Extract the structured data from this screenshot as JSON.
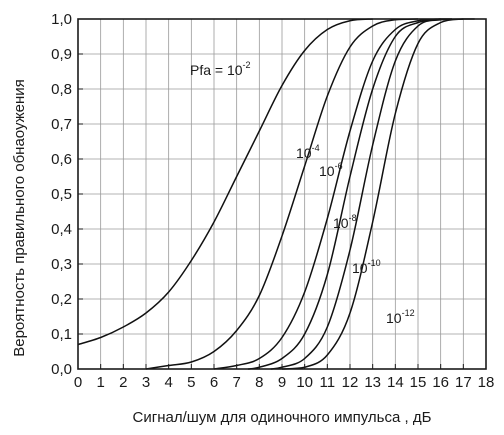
{
  "chart_data": {
    "type": "line",
    "title": "",
    "xlabel": "Сигнал/шум для одиночного импульса , дБ",
    "ylabel": "Вероятность правильного обнаоужения",
    "xlim": [
      0,
      18
    ],
    "ylim": [
      0,
      1
    ],
    "grid": true,
    "x_ticks": [
      0,
      1,
      2,
      3,
      4,
      5,
      6,
      7,
      8,
      9,
      10,
      11,
      12,
      13,
      14,
      15,
      16,
      17,
      18
    ],
    "y_ticks": [
      0.0,
      0.1,
      0.2,
      0.3,
      0.4,
      0.5,
      0.6,
      0.7,
      0.8,
      0.9,
      1.0
    ],
    "x_tick_labels": [
      "0",
      "1",
      "2",
      "3",
      "4",
      "5",
      "6",
      "7",
      "8",
      "9",
      "10",
      "11",
      "12",
      "13",
      "14",
      "15",
      "16",
      "17",
      "18"
    ],
    "y_tick_labels": [
      "0,0",
      "0,1",
      "0,2",
      "0,3",
      "0,4",
      "0,5",
      "0,6",
      "0,7",
      "0,8",
      "0,9",
      "1,0"
    ],
    "series": [
      {
        "label_base": "Pfa = 10",
        "label_exp": "-2",
        "x": [
          0,
          1,
          2,
          3,
          4,
          5,
          6,
          7,
          8,
          9,
          10,
          11,
          12,
          13
        ],
        "y": [
          0.07,
          0.09,
          0.12,
          0.16,
          0.22,
          0.31,
          0.42,
          0.55,
          0.68,
          0.81,
          0.91,
          0.97,
          0.995,
          1.0
        ]
      },
      {
        "label_base": "10",
        "label_exp": "-4",
        "x": [
          3,
          4,
          5,
          6,
          7,
          8,
          9,
          10,
          11,
          12,
          13,
          14,
          15
        ],
        "y": [
          0.0,
          0.01,
          0.02,
          0.05,
          0.11,
          0.21,
          0.38,
          0.58,
          0.78,
          0.92,
          0.98,
          0.998,
          1.0
        ]
      },
      {
        "label_base": "10",
        "label_exp": "-6",
        "x": [
          6,
          7,
          8,
          9,
          10,
          11,
          12,
          13,
          14,
          15,
          16
        ],
        "y": [
          0.0,
          0.01,
          0.03,
          0.09,
          0.22,
          0.43,
          0.68,
          0.88,
          0.97,
          0.995,
          1.0
        ]
      },
      {
        "label_base": "10",
        "label_exp": "-8",
        "x": [
          7.5,
          8,
          9,
          10,
          11,
          12,
          13,
          14,
          15,
          16,
          16.5
        ],
        "y": [
          0.0,
          0.005,
          0.03,
          0.1,
          0.27,
          0.55,
          0.8,
          0.95,
          0.99,
          1.0,
          1.0
        ]
      },
      {
        "label_base": "10",
        "label_exp": "-10",
        "x": [
          8.5,
          9,
          10,
          11,
          12,
          13,
          14,
          15,
          16,
          17
        ],
        "y": [
          0.0,
          0.005,
          0.03,
          0.12,
          0.34,
          0.64,
          0.88,
          0.98,
          0.998,
          1.0
        ]
      },
      {
        "label_base": "10",
        "label_exp": "-12",
        "x": [
          9,
          10,
          11,
          12,
          13,
          14,
          15,
          16,
          17,
          17.5
        ],
        "y": [
          0.0,
          0.005,
          0.04,
          0.16,
          0.42,
          0.73,
          0.93,
          0.99,
          1.0,
          1.0
        ]
      }
    ]
  }
}
